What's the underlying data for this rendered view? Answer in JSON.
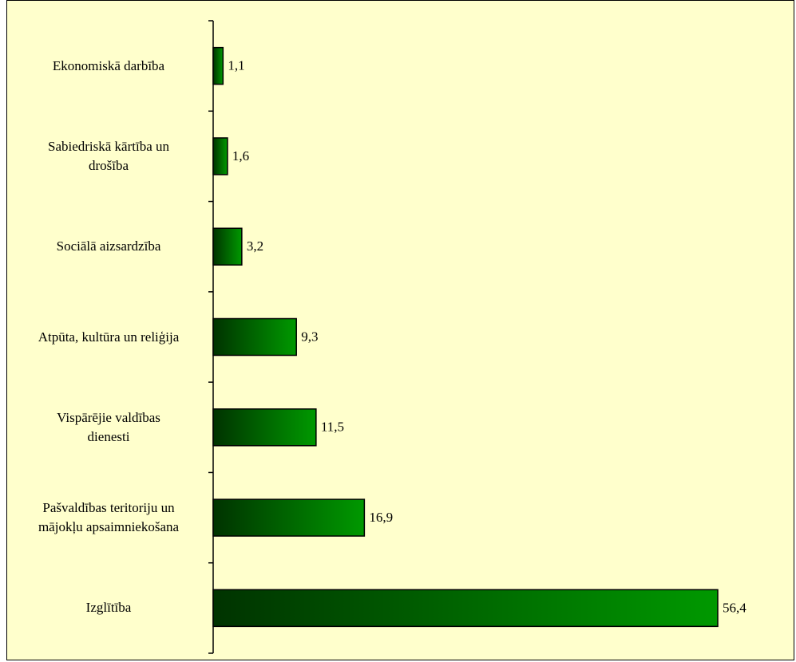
{
  "chart_data": {
    "type": "bar",
    "orientation": "horizontal",
    "categories": [
      "Ekonomiskā darbība",
      "Sabiedriskā kārtība un\ndrošība",
      "Sociālā aizsardzība",
      "Atpūta, kultūra un reliģija",
      "Vispārējie valdības\ndienesti",
      "Pašvaldības teritoriju un\nmājokļu apsaimniekošana",
      "Izglītība"
    ],
    "values": [
      1.1,
      1.6,
      3.2,
      9.3,
      11.5,
      16.9,
      56.4
    ],
    "value_labels": [
      "1,1",
      "1,6",
      "3,2",
      "9,3",
      "11,5",
      "16,9",
      "56,4"
    ],
    "color": "#009900"
  }
}
